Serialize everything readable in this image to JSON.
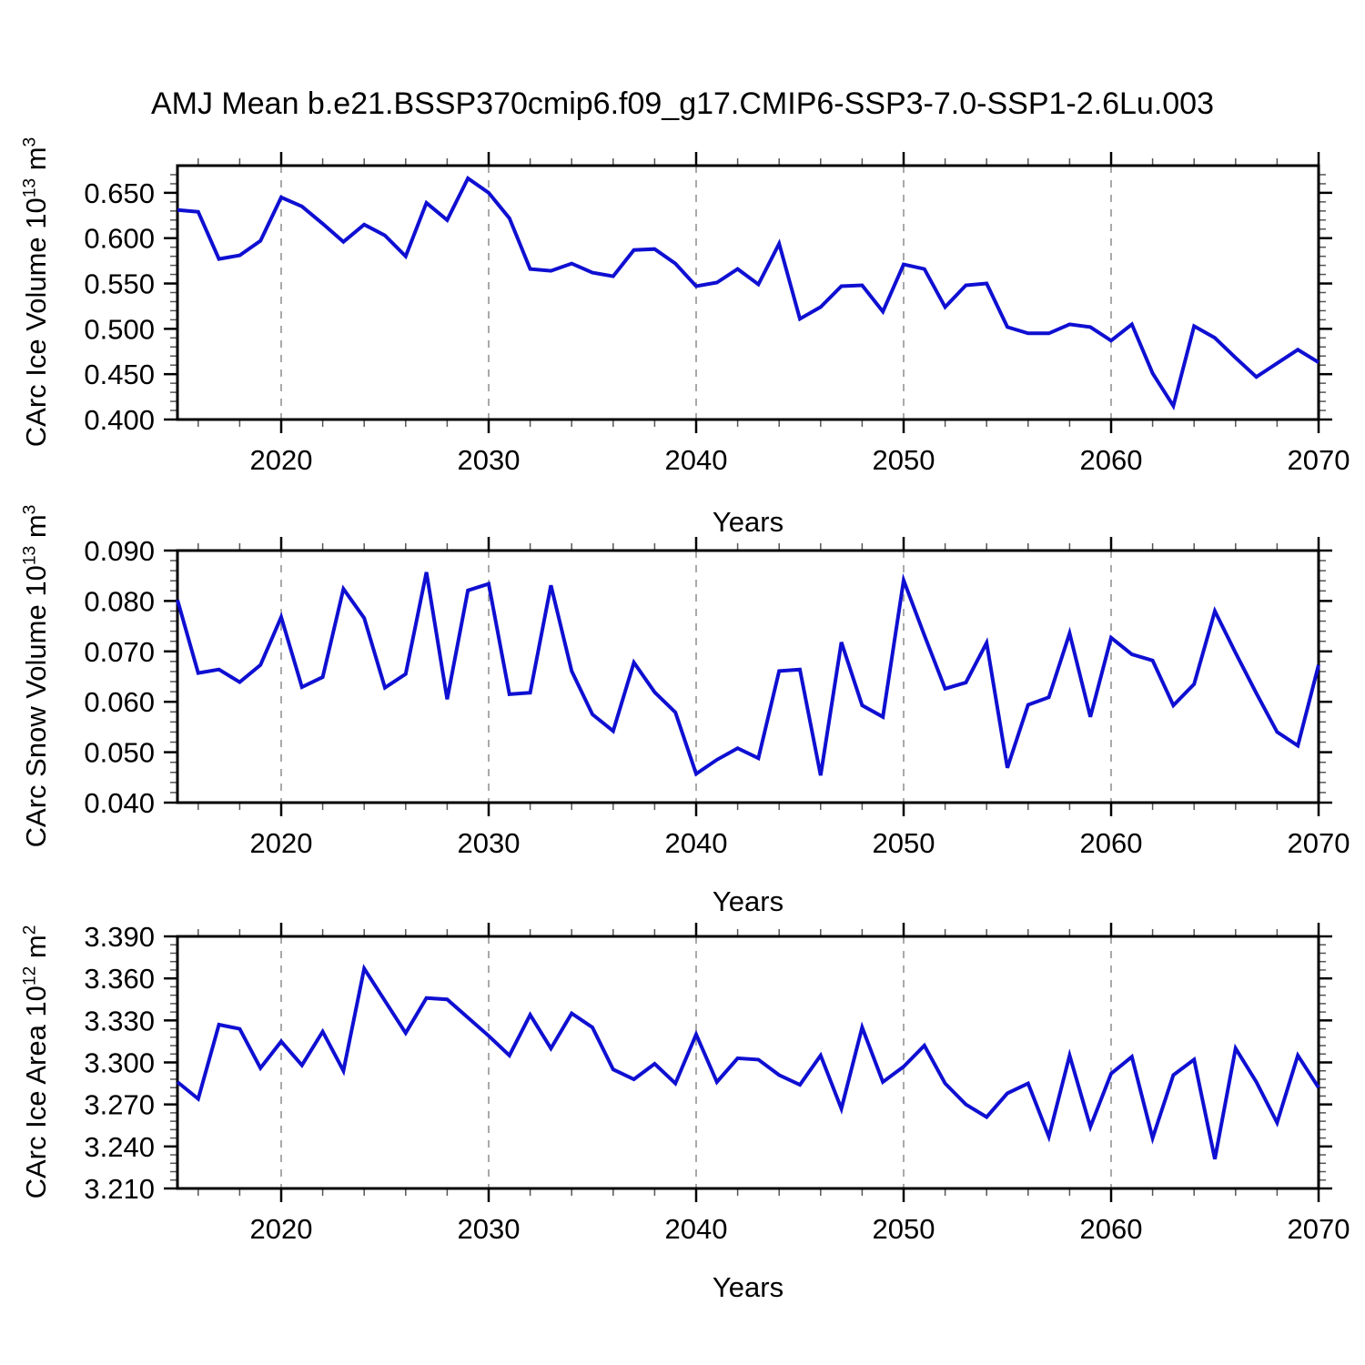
{
  "title": "AMJ Mean b.e21.BSSP370cmip6.f09_g17.CMIP6-SSP3-7.0-SSP1-2.6Lu.003",
  "style": {
    "line_color": "#0f0fd2",
    "grid_color": "#a9a9a9",
    "axis_color": "#000000",
    "minor_tick_color": "#555555",
    "background": "#ffffff"
  },
  "chart_data": [
    {
      "type": "line",
      "name": "carc-ice-volume",
      "ylabel_base": "CArc Ice Volume 10",
      "ylabel_exp": "13",
      "ylabel_unit": " m",
      "ylabel_unit_exp": "3",
      "xlabel": "Years",
      "x_start": 2015,
      "x_end": 2070,
      "x_tick_values": [
        2020,
        2030,
        2040,
        2050,
        2060,
        2070
      ],
      "x_tick_labels": [
        "2020",
        "2030",
        "2040",
        "2050",
        "2060",
        "2070"
      ],
      "x_minor_step": 2,
      "grid_years": [
        2020,
        2030,
        2040,
        2050,
        2060
      ],
      "ylim": [
        0.4,
        0.68
      ],
      "y_tick_values": [
        0.4,
        0.45,
        0.5,
        0.55,
        0.6,
        0.65
      ],
      "y_tick_labels": [
        "0.400",
        "0.450",
        "0.500",
        "0.550",
        "0.600",
        "0.650"
      ],
      "y_minor_step": 0.01,
      "values": [
        0.631,
        0.629,
        0.577,
        0.581,
        0.597,
        0.645,
        0.635,
        0.616,
        0.596,
        0.615,
        0.603,
        0.58,
        0.639,
        0.62,
        0.666,
        0.65,
        0.622,
        0.566,
        0.564,
        0.572,
        0.562,
        0.558,
        0.587,
        0.588,
        0.572,
        0.547,
        0.551,
        0.566,
        0.549,
        0.594,
        0.511,
        0.524,
        0.547,
        0.548,
        0.519,
        0.571,
        0.566,
        0.524,
        0.548,
        0.55,
        0.502,
        0.495,
        0.495,
        0.505,
        0.502,
        0.487,
        0.505,
        0.451,
        0.415,
        0.503,
        0.49,
        0.468,
        0.447,
        0.462,
        0.477,
        0.463
      ]
    },
    {
      "type": "line",
      "name": "carc-snow-volume",
      "ylabel_base": "CArc Snow Volume 10",
      "ylabel_exp": "13",
      "ylabel_unit": " m",
      "ylabel_unit_exp": "3",
      "xlabel": "Years",
      "x_start": 2015,
      "x_end": 2070,
      "x_tick_values": [
        2020,
        2030,
        2040,
        2050,
        2060,
        2070
      ],
      "x_tick_labels": [
        "2020",
        "2030",
        "2040",
        "2050",
        "2060",
        "2070"
      ],
      "x_minor_step": 2,
      "grid_years": [
        2020,
        2030,
        2040,
        2050,
        2060
      ],
      "ylim": [
        0.04,
        0.09
      ],
      "y_tick_values": [
        0.04,
        0.05,
        0.06,
        0.07,
        0.08,
        0.09
      ],
      "y_tick_labels": [
        "0.040",
        "0.050",
        "0.060",
        "0.070",
        "0.080",
        "0.090"
      ],
      "y_minor_step": 0.002,
      "values": [
        0.0802,
        0.0657,
        0.0664,
        0.0639,
        0.0673,
        0.0768,
        0.0629,
        0.0649,
        0.0824,
        0.0766,
        0.0628,
        0.0655,
        0.0857,
        0.0605,
        0.0821,
        0.0834,
        0.0615,
        0.0618,
        0.0831,
        0.0661,
        0.0575,
        0.0542,
        0.0678,
        0.0619,
        0.0579,
        0.0457,
        0.0485,
        0.0508,
        0.0488,
        0.0661,
        0.0664,
        0.0454,
        0.0718,
        0.0593,
        0.057,
        0.0841,
        0.0732,
        0.0626,
        0.0638,
        0.0717,
        0.0469,
        0.0594,
        0.0609,
        0.0736,
        0.057,
        0.0727,
        0.0694,
        0.0682,
        0.0593,
        0.0635,
        0.078,
        0.0697,
        0.0617,
        0.054,
        0.0513,
        0.0673
      ]
    },
    {
      "type": "line",
      "name": "carc-ice-area",
      "ylabel_base": "CArc Ice Area 10",
      "ylabel_exp": "12",
      "ylabel_unit": " m",
      "ylabel_unit_exp": "2",
      "xlabel": "Years",
      "x_start": 2015,
      "x_end": 2070,
      "x_tick_values": [
        2020,
        2030,
        2040,
        2050,
        2060,
        2070
      ],
      "x_tick_labels": [
        "2020",
        "2030",
        "2040",
        "2050",
        "2060",
        "2070"
      ],
      "x_minor_step": 2,
      "grid_years": [
        2020,
        2030,
        2040,
        2050,
        2060
      ],
      "ylim": [
        3.21,
        3.39
      ],
      "y_tick_values": [
        3.21,
        3.24,
        3.27,
        3.3,
        3.33,
        3.36,
        3.39
      ],
      "y_tick_labels": [
        "3.210",
        "3.240",
        "3.270",
        "3.300",
        "3.330",
        "3.360",
        "3.390"
      ],
      "y_minor_step": 0.006,
      "values": [
        3.286,
        3.274,
        3.327,
        3.324,
        3.296,
        3.315,
        3.298,
        3.322,
        3.294,
        3.367,
        3.344,
        3.321,
        3.346,
        3.345,
        3.332,
        3.319,
        3.305,
        3.334,
        3.31,
        3.335,
        3.325,
        3.295,
        3.288,
        3.299,
        3.285,
        3.32,
        3.286,
        3.303,
        3.302,
        3.291,
        3.284,
        3.305,
        3.267,
        3.325,
        3.286,
        3.297,
        3.312,
        3.285,
        3.27,
        3.261,
        3.278,
        3.285,
        3.247,
        3.305,
        3.254,
        3.292,
        3.304,
        3.246,
        3.291,
        3.302,
        3.231,
        3.31,
        3.286,
        3.257,
        3.305,
        3.282
      ]
    }
  ]
}
